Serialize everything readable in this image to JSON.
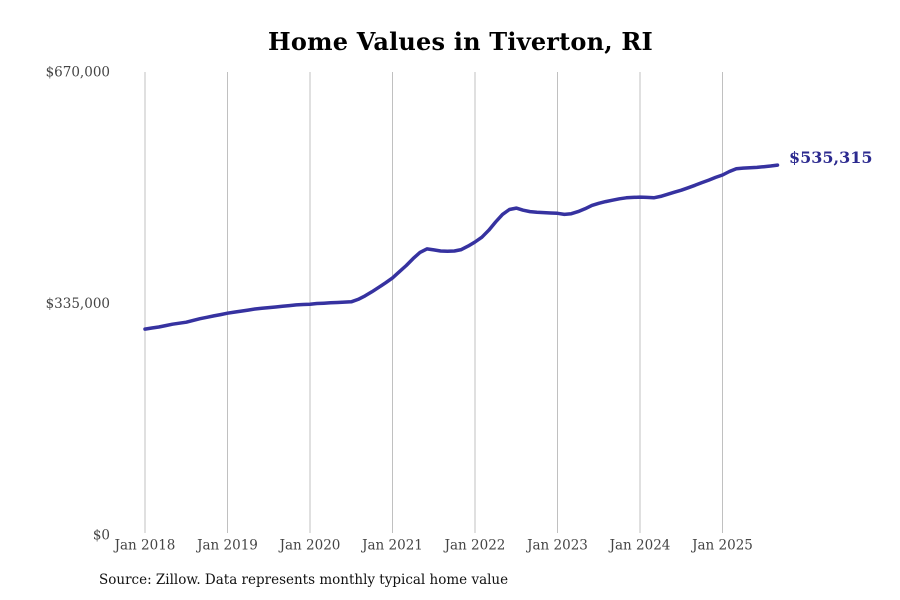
{
  "page": {
    "source_note": "Source: Zillow. Data represents monthly typical home value"
  },
  "colors": {
    "background": "#ffffff",
    "line": "#3632a0",
    "annotation": "#2c2a8f",
    "gridline": "#c0c0c0",
    "tick_label": "#444444",
    "title": "#000000"
  },
  "chart_data": {
    "type": "line",
    "title": "Home Values in Tiverton, RI",
    "xlabel": "",
    "ylabel": "",
    "ylim": [
      0,
      670000
    ],
    "grid": "vertical-only",
    "legend": "none",
    "end_label": "$535,315",
    "final_value": 535315,
    "y_ticks": [
      {
        "label": "$670,000",
        "value": 670000
      },
      {
        "label": "$335,000",
        "value": 335000
      },
      {
        "label": "$0",
        "value": 0
      }
    ],
    "x_ticks": [
      "Jan 2018",
      "Jan 2019",
      "Jan 2020",
      "Jan 2021",
      "Jan 2022",
      "Jan 2023",
      "Jan 2024",
      "Jan 2025"
    ],
    "x": [
      "2018-01",
      "2018-02",
      "2018-03",
      "2018-04",
      "2018-05",
      "2018-06",
      "2018-07",
      "2018-08",
      "2018-09",
      "2018-10",
      "2018-11",
      "2018-12",
      "2019-01",
      "2019-02",
      "2019-03",
      "2019-04",
      "2019-05",
      "2019-06",
      "2019-07",
      "2019-08",
      "2019-09",
      "2019-10",
      "2019-11",
      "2019-12",
      "2020-01",
      "2020-02",
      "2020-03",
      "2020-04",
      "2020-05",
      "2020-06",
      "2020-07",
      "2020-08",
      "2020-09",
      "2020-10",
      "2020-11",
      "2020-12",
      "2021-01",
      "2021-02",
      "2021-03",
      "2021-04",
      "2021-05",
      "2021-06",
      "2021-07",
      "2021-08",
      "2021-09",
      "2021-10",
      "2021-11",
      "2021-12",
      "2022-01",
      "2022-02",
      "2022-03",
      "2022-04",
      "2022-05",
      "2022-06",
      "2022-07",
      "2022-08",
      "2022-09",
      "2022-10",
      "2022-11",
      "2022-12",
      "2023-01",
      "2023-02",
      "2023-03",
      "2023-04",
      "2023-05",
      "2023-06",
      "2023-07",
      "2023-08",
      "2023-09",
      "2023-10",
      "2023-11",
      "2023-12",
      "2024-01",
      "2024-02",
      "2024-03",
      "2024-04",
      "2024-05",
      "2024-06",
      "2024-07",
      "2024-08",
      "2024-09",
      "2024-10",
      "2024-11",
      "2024-12",
      "2025-01",
      "2025-02",
      "2025-03",
      "2025-04",
      "2025-05",
      "2025-06",
      "2025-07",
      "2025-08",
      "2025-09"
    ],
    "values": [
      298000,
      299500,
      301000,
      303000,
      305000,
      306500,
      308000,
      310500,
      313000,
      315000,
      317000,
      319000,
      321000,
      322500,
      324000,
      325500,
      327000,
      328000,
      329000,
      330000,
      331000,
      332000,
      333000,
      333500,
      334000,
      335000,
      335500,
      336000,
      336500,
      337000,
      337500,
      341000,
      346000,
      352000,
      358500,
      365000,
      372000,
      381000,
      390000,
      400000,
      409000,
      414000,
      412500,
      411000,
      410500,
      411000,
      413000,
      418000,
      424000,
      431000,
      441000,
      453000,
      464000,
      471000,
      473000,
      470000,
      468000,
      467000,
      466500,
      466000,
      465500,
      464000,
      465000,
      468000,
      472000,
      477000,
      480000,
      482500,
      484500,
      486500,
      488000,
      488500,
      489000,
      488500,
      488000,
      490000,
      493000,
      496000,
      499000,
      502500,
      506000,
      510000,
      513500,
      517500,
      521000,
      526000,
      530000,
      531000,
      531500,
      532000,
      533000,
      534000,
      535315
    ]
  }
}
